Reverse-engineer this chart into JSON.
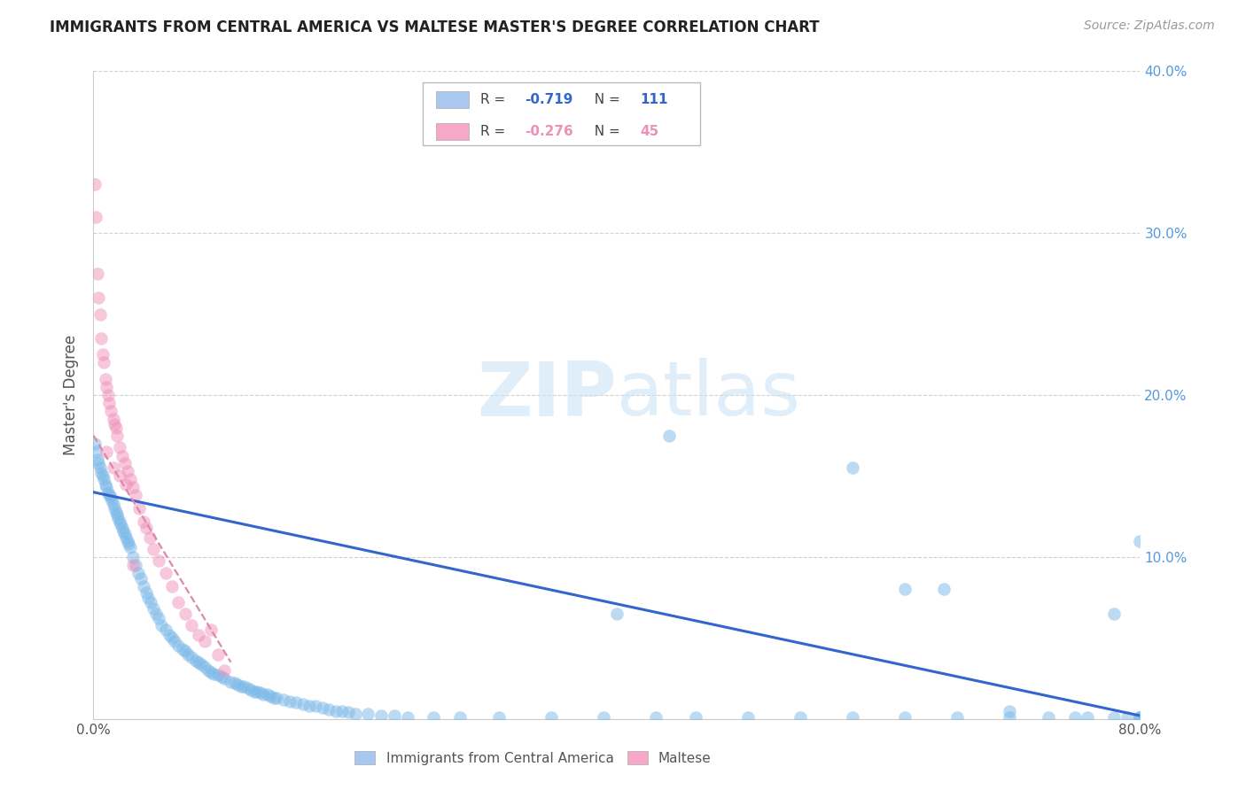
{
  "title": "IMMIGRANTS FROM CENTRAL AMERICA VS MALTESE MASTER'S DEGREE CORRELATION CHART",
  "source": "Source: ZipAtlas.com",
  "ylabel": "Master's Degree",
  "xlim": [
    0.0,
    0.8
  ],
  "ylim": [
    0.0,
    0.4
  ],
  "legend1_color": "#a8c8f0",
  "legend2_color": "#f5a8c8",
  "blue_color": "#7ab8e8",
  "pink_color": "#f090b8",
  "blue_line_color": "#3366cc",
  "pink_line_color": "#dd88aa",
  "right_axis_color": "#5599dd",
  "blue_R": "-0.719",
  "blue_N": "111",
  "pink_R": "-0.276",
  "pink_N": "45",
  "blue_points_x": [
    0.001,
    0.002,
    0.003,
    0.004,
    0.005,
    0.006,
    0.007,
    0.008,
    0.009,
    0.01,
    0.011,
    0.012,
    0.013,
    0.014,
    0.015,
    0.016,
    0.017,
    0.018,
    0.019,
    0.02,
    0.021,
    0.022,
    0.023,
    0.024,
    0.025,
    0.026,
    0.027,
    0.028,
    0.03,
    0.032,
    0.034,
    0.036,
    0.038,
    0.04,
    0.042,
    0.044,
    0.046,
    0.048,
    0.05,
    0.052,
    0.055,
    0.058,
    0.06,
    0.062,
    0.065,
    0.068,
    0.07,
    0.072,
    0.075,
    0.078,
    0.08,
    0.082,
    0.085,
    0.088,
    0.09,
    0.092,
    0.095,
    0.098,
    0.1,
    0.105,
    0.108,
    0.11,
    0.113,
    0.115,
    0.118,
    0.12,
    0.123,
    0.125,
    0.128,
    0.13,
    0.133,
    0.135,
    0.138,
    0.14,
    0.145,
    0.15,
    0.155,
    0.16,
    0.165,
    0.17,
    0.175,
    0.18,
    0.185,
    0.19,
    0.195,
    0.2,
    0.21,
    0.22,
    0.23,
    0.24,
    0.26,
    0.28,
    0.31,
    0.35,
    0.39,
    0.43,
    0.46,
    0.5,
    0.54,
    0.58,
    0.62,
    0.66,
    0.7,
    0.73,
    0.75,
    0.76,
    0.78,
    0.79,
    0.8,
    0.8,
    0.8
  ],
  "blue_points_y": [
    0.17,
    0.165,
    0.16,
    0.158,
    0.155,
    0.152,
    0.15,
    0.148,
    0.145,
    0.143,
    0.14,
    0.138,
    0.137,
    0.135,
    0.133,
    0.13,
    0.128,
    0.126,
    0.124,
    0.122,
    0.12,
    0.118,
    0.116,
    0.114,
    0.112,
    0.11,
    0.108,
    0.106,
    0.1,
    0.095,
    0.09,
    0.087,
    0.082,
    0.078,
    0.075,
    0.072,
    0.068,
    0.065,
    0.062,
    0.058,
    0.055,
    0.052,
    0.05,
    0.048,
    0.045,
    0.043,
    0.042,
    0.04,
    0.038,
    0.036,
    0.035,
    0.034,
    0.032,
    0.03,
    0.029,
    0.028,
    0.027,
    0.026,
    0.025,
    0.023,
    0.022,
    0.021,
    0.02,
    0.02,
    0.019,
    0.018,
    0.017,
    0.017,
    0.016,
    0.015,
    0.015,
    0.014,
    0.013,
    0.013,
    0.012,
    0.011,
    0.01,
    0.009,
    0.008,
    0.008,
    0.007,
    0.006,
    0.005,
    0.005,
    0.004,
    0.003,
    0.003,
    0.002,
    0.002,
    0.001,
    0.001,
    0.001,
    0.001,
    0.001,
    0.001,
    0.001,
    0.001,
    0.001,
    0.001,
    0.001,
    0.001,
    0.001,
    0.001,
    0.001,
    0.001,
    0.001,
    0.001,
    0.001,
    0.001,
    0.001,
    0.001
  ],
  "blue_outliers_x": [
    0.4,
    0.44,
    0.58,
    0.62,
    0.65,
    0.7,
    0.78,
    0.8
  ],
  "blue_outliers_y": [
    0.065,
    0.175,
    0.155,
    0.08,
    0.08,
    0.005,
    0.065,
    0.11
  ],
  "pink_points_x": [
    0.001,
    0.002,
    0.003,
    0.004,
    0.005,
    0.006,
    0.007,
    0.008,
    0.009,
    0.01,
    0.011,
    0.012,
    0.013,
    0.015,
    0.016,
    0.017,
    0.018,
    0.02,
    0.022,
    0.024,
    0.026,
    0.028,
    0.03,
    0.032,
    0.035,
    0.038,
    0.04,
    0.043,
    0.046,
    0.05,
    0.055,
    0.06,
    0.065,
    0.07,
    0.075,
    0.08,
    0.085,
    0.09,
    0.095,
    0.1,
    0.01,
    0.015,
    0.02,
    0.025,
    0.03
  ],
  "pink_points_y": [
    0.33,
    0.31,
    0.275,
    0.26,
    0.25,
    0.235,
    0.225,
    0.22,
    0.21,
    0.205,
    0.2,
    0.195,
    0.19,
    0.185,
    0.182,
    0.18,
    0.175,
    0.168,
    0.162,
    0.158,
    0.153,
    0.148,
    0.143,
    0.138,
    0.13,
    0.122,
    0.118,
    0.112,
    0.105,
    0.098,
    0.09,
    0.082,
    0.072,
    0.065,
    0.058,
    0.052,
    0.048,
    0.055,
    0.04,
    0.03,
    0.165,
    0.155,
    0.15,
    0.145,
    0.095
  ],
  "blue_line_x": [
    0.0,
    0.8
  ],
  "blue_line_y": [
    0.14,
    0.002
  ],
  "pink_line_x": [
    0.0,
    0.105
  ],
  "pink_line_y": [
    0.175,
    0.035
  ]
}
